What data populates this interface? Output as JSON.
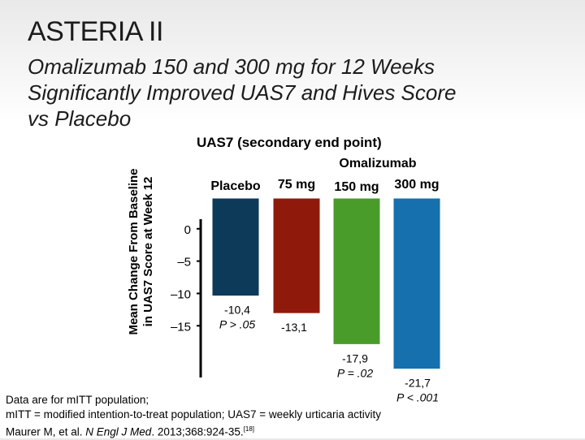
{
  "title": "ASTERIA II",
  "subtitle": [
    "Omalizumab 150 and 300 mg for 12 Weeks",
    "Significantly Improved UAS7 and Hives Score",
    "vs Placebo"
  ],
  "chart_data": {
    "type": "bar",
    "title": "UAS7 (secondary end point)",
    "group_label": "Omalizumab",
    "ylabel": [
      "Mean Change From Baseline",
      "in UAS7 Score at Week 12"
    ],
    "categories": [
      "Placebo",
      "75 mg",
      "150 mg",
      "300 mg"
    ],
    "values": [
      -10.4,
      -13.1,
      -17.9,
      -21.7
    ],
    "value_labels": [
      "-10,4",
      "-13,1",
      "-17,9",
      "-21,7"
    ],
    "p_labels": [
      "P > .05",
      "",
      "P = .02",
      "P < .001"
    ],
    "colors": [
      "#0d3a59",
      "#8f1a0c",
      "#4a9c2a",
      "#1670ad"
    ],
    "yticks": [
      0,
      -5,
      -10,
      -15
    ],
    "ytick_labels": [
      "0",
      "–5",
      "–10",
      "–15"
    ],
    "ylim": [
      -23,
      5
    ],
    "grid": false,
    "legend": "none"
  },
  "footer": {
    "line1": "Data are for mITT population;",
    "line2": "mITT = modified intention-to-treat population; UAS7 = weekly urticaria activity",
    "line3_pre": "Maurer M, et al. ",
    "line3_journal": "N Engl J Med",
    "line3_post": ". 2013;368:924-35.",
    "line3_ref": "[18]"
  }
}
